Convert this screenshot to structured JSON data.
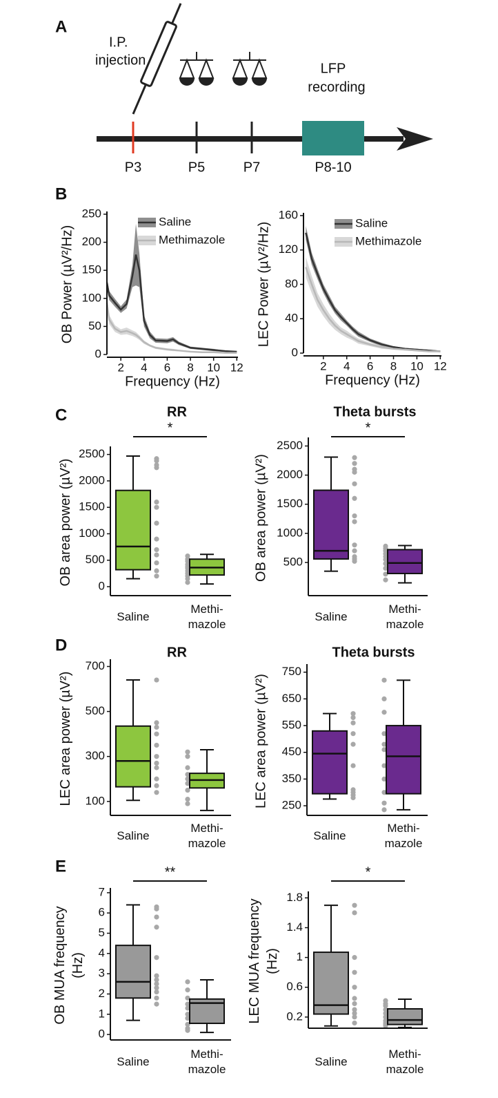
{
  "panel_letters": [
    "A",
    "B",
    "C",
    "D",
    "E"
  ],
  "timeline": {
    "injection": [
      "I.P.",
      "injection"
    ],
    "recording": [
      "LFP",
      "recording"
    ],
    "days": [
      "P3",
      "P5",
      "P7",
      "P8-10"
    ]
  },
  "chart_data": [
    {
      "type": "line",
      "ylabel": "OB Power (µV²/Hz)",
      "xlabel": "Frequency (Hz)",
      "legend": "upper right",
      "x": [
        0.8,
        1,
        1.5,
        2,
        2.5,
        3,
        3.3,
        3.6,
        4,
        4.5,
        5,
        6,
        6.5,
        7,
        8,
        9,
        10,
        11,
        12
      ],
      "xlim": [
        0.8,
        12.1
      ],
      "xticks": [
        2,
        4,
        6,
        8,
        10,
        12
      ],
      "ylim": [
        0,
        250
      ],
      "yticks": [
        0,
        50,
        100,
        150,
        200,
        250
      ],
      "series": [
        {
          "name": "Saline",
          "color": "#333333",
          "values": [
            128,
            105,
            92,
            80,
            90,
            140,
            178,
            150,
            60,
            35,
            25,
            24,
            27,
            20,
            12,
            10,
            8,
            6,
            5
          ],
          "errors": [
            10,
            8,
            7,
            6,
            8,
            20,
            55,
            30,
            10,
            6,
            4,
            4,
            4,
            3,
            2,
            2,
            2,
            1,
            1
          ]
        },
        {
          "name": "Methimazole",
          "color": "#b8b8b8",
          "values": [
            92,
            62,
            46,
            40,
            42,
            38,
            35,
            30,
            22,
            16,
            12,
            9,
            8,
            7,
            5,
            4,
            4,
            3,
            3
          ],
          "errors": [
            15,
            8,
            6,
            5,
            6,
            5,
            5,
            4,
            3,
            2,
            2,
            2,
            2,
            1,
            1,
            1,
            1,
            1,
            1
          ]
        }
      ]
    },
    {
      "type": "line",
      "ylabel": "LEC Power (µV²/Hz)",
      "xlabel": "Frequency (Hz)",
      "legend": "upper right",
      "x": [
        0.5,
        1,
        1.5,
        2,
        2.5,
        3,
        3.5,
        4,
        4.5,
        5,
        6,
        7,
        8,
        9,
        10,
        11,
        12
      ],
      "xlim": [
        0.3,
        12.1
      ],
      "xticks": [
        2,
        4,
        6,
        8,
        10,
        12
      ],
      "ylim": [
        0,
        160
      ],
      "yticks": [
        0,
        40,
        80,
        120,
        160
      ],
      "series": [
        {
          "name": "Saline",
          "color": "#333333",
          "values": [
            140,
            110,
            92,
            75,
            62,
            50,
            42,
            35,
            28,
            22,
            15,
            10,
            7,
            5,
            4,
            3,
            2
          ],
          "errors": [
            8,
            7,
            6,
            5,
            5,
            4,
            4,
            3,
            3,
            3,
            2,
            2,
            1,
            1,
            1,
            1,
            1
          ]
        },
        {
          "name": "Methimazole",
          "color": "#b8b8b8",
          "values": [
            100,
            80,
            62,
            50,
            40,
            32,
            26,
            22,
            18,
            14,
            10,
            7,
            5,
            4,
            3,
            2,
            2
          ],
          "errors": [
            12,
            10,
            8,
            7,
            6,
            5,
            4,
            4,
            3,
            3,
            2,
            2,
            1,
            1,
            1,
            1,
            1
          ]
        }
      ]
    },
    {
      "type": "box",
      "title": "RR",
      "ylabel": "OB area power (µV²)",
      "categories": [
        "Saline",
        "Methi-\nmazole"
      ],
      "color": "#8dc63f",
      "ylim": [
        -170,
        2600
      ],
      "yticks": [
        0,
        500,
        1000,
        1500,
        2000,
        2500
      ],
      "significance": "*",
      "boxes": [
        {
          "min": 150,
          "q1": 320,
          "median": 760,
          "q3": 1820,
          "max": 2470,
          "points": [
            2420,
            2380,
            2300,
            2250,
            1600,
            1500,
            1200,
            900,
            700,
            600,
            450,
            300,
            200
          ]
        },
        {
          "min": 50,
          "q1": 220,
          "median": 360,
          "q3": 520,
          "max": 610,
          "points": [
            580,
            520,
            480,
            420,
            380,
            350,
            300,
            250,
            200,
            150,
            80
          ]
        }
      ]
    },
    {
      "type": "box",
      "title": "Theta bursts",
      "ylabel": "OB area power (µV²)",
      "categories": [
        "Saline",
        "Methi-\nmazole"
      ],
      "color": "#6a2a8e",
      "ylim": [
        -70,
        2600
      ],
      "yticks": [
        500,
        1000,
        1500,
        2000,
        2500
      ],
      "significance": "*",
      "boxes": [
        {
          "min": 350,
          "q1": 560,
          "median": 700,
          "q3": 1740,
          "max": 2310,
          "points": [
            2300,
            2200,
            2100,
            2050,
            1850,
            1600,
            1300,
            1200,
            800,
            700,
            600,
            560,
            520
          ]
        },
        {
          "min": 150,
          "q1": 310,
          "median": 490,
          "q3": 720,
          "max": 790,
          "points": [
            780,
            740,
            700,
            650,
            600,
            550,
            480,
            400,
            300,
            200
          ]
        }
      ]
    },
    {
      "type": "box",
      "title": "RR",
      "ylabel": "LEC area power (µV²)",
      "categories": [
        "Saline",
        "Methi-\nmazole"
      ],
      "color": "#8dc63f",
      "ylim": [
        38,
        720
      ],
      "yticks": [
        100,
        300,
        500,
        700
      ],
      "boxes": [
        {
          "min": 105,
          "q1": 165,
          "median": 280,
          "q3": 435,
          "max": 640,
          "points": [
            640,
            450,
            430,
            400,
            350,
            300,
            270,
            250,
            200,
            170,
            140
          ]
        },
        {
          "min": 60,
          "q1": 160,
          "median": 195,
          "q3": 225,
          "max": 330,
          "points": [
            320,
            300,
            250,
            220,
            200,
            180,
            150,
            110,
            90
          ]
        }
      ]
    },
    {
      "type": "box",
      "title": "Theta bursts",
      "ylabel": "LEC area power (µV²)",
      "categories": [
        "Saline",
        "Methi-\nmazole"
      ],
      "color": "#6a2a8e",
      "ylim": [
        214,
        770
      ],
      "yticks": [
        250,
        350,
        450,
        550,
        650,
        750
      ],
      "boxes": [
        {
          "min": 275,
          "q1": 295,
          "median": 445,
          "q3": 530,
          "max": 595,
          "points": [
            595,
            580,
            560,
            520,
            480,
            400,
            310,
            300,
            290,
            280
          ]
        },
        {
          "min": 235,
          "q1": 295,
          "median": 435,
          "q3": 550,
          "max": 720,
          "points": [
            720,
            650,
            600,
            520,
            480,
            460,
            400,
            350,
            300,
            260,
            235
          ]
        }
      ]
    },
    {
      "type": "box",
      "ylabel": "OB MUA frequency\n(Hz)",
      "categories": [
        "Saline",
        "Methi-\nmazole"
      ],
      "color": "#999999",
      "ylim": [
        -0.27,
        7.1
      ],
      "yticks": [
        0,
        1,
        2,
        3,
        4,
        5,
        6,
        7
      ],
      "significance": "**",
      "boxes": [
        {
          "min": 0.7,
          "q1": 1.8,
          "median": 2.6,
          "q3": 4.4,
          "max": 6.4,
          "points": [
            6.3,
            6.2,
            5.8,
            5.3,
            3.8,
            2.9,
            2.7,
            2.5,
            2.3,
            2.1,
            1.8,
            1.5
          ]
        },
        {
          "min": 0.1,
          "q1": 0.55,
          "median": 1.55,
          "q3": 1.75,
          "max": 2.7,
          "points": [
            2.6,
            2.2,
            1.8,
            1.5,
            1.3,
            1.0,
            0.8,
            0.5,
            0.3,
            0.2
          ]
        }
      ]
    },
    {
      "type": "box",
      "ylabel": "LEC MUA frequency\n(Hz)",
      "categories": [
        "Saline",
        "Methi-\nmazole"
      ],
      "color": "#999999",
      "ylim": [
        0.05,
        1.85
      ],
      "yticks": [
        0.2,
        0.6,
        1,
        1.4,
        1.8
      ],
      "significance": "*",
      "boxes": [
        {
          "min": 0.08,
          "q1": 0.24,
          "median": 0.36,
          "q3": 1.07,
          "max": 1.7,
          "points": [
            1.7,
            1.6,
            1.0,
            0.8,
            0.6,
            0.45,
            0.38,
            0.3,
            0.25,
            0.2,
            0.12
          ]
        },
        {
          "min": 0.06,
          "q1": 0.1,
          "median": 0.16,
          "q3": 0.31,
          "max": 0.44,
          "points": [
            0.42,
            0.38,
            0.35,
            0.3,
            0.25,
            0.2,
            0.15,
            0.12,
            0.1,
            0.08
          ]
        }
      ]
    }
  ]
}
